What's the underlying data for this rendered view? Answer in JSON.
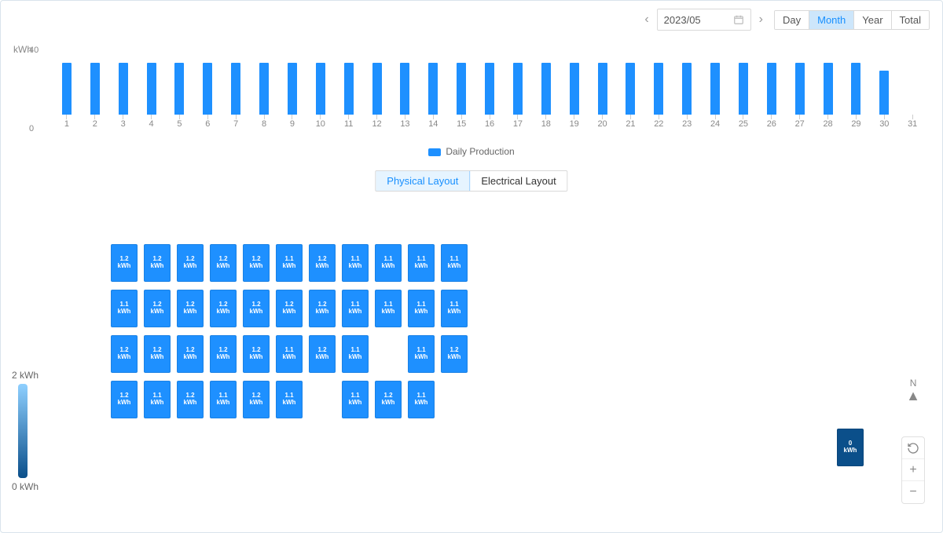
{
  "toolbar": {
    "date_value": "2023/05",
    "segments": [
      {
        "label": "Day",
        "active": false
      },
      {
        "label": "Month",
        "active": true
      },
      {
        "label": "Year",
        "active": false
      },
      {
        "label": "Total",
        "active": false
      }
    ]
  },
  "chart": {
    "type": "bar",
    "y_axis_label": "kWh",
    "y_ticks": [
      0,
      40
    ],
    "y_max": 40,
    "bar_color": "#1e90ff",
    "background_color": "#ffffff",
    "tick_color": "#cccccc",
    "label_color": "#888888",
    "legend_label": "Daily Production",
    "categories": [
      1,
      2,
      3,
      4,
      5,
      6,
      7,
      8,
      9,
      10,
      11,
      12,
      13,
      14,
      15,
      16,
      17,
      18,
      19,
      20,
      21,
      22,
      23,
      24,
      25,
      26,
      27,
      28,
      29,
      30,
      31
    ],
    "values": [
      38,
      38,
      38,
      38,
      38,
      38,
      38,
      38,
      38,
      38,
      38,
      38,
      38,
      38,
      38,
      38,
      38,
      38,
      38,
      38,
      38,
      38,
      38,
      38,
      38,
      38,
      38,
      38,
      38,
      32,
      null
    ]
  },
  "layout_tabs": [
    {
      "label": "Physical Layout",
      "active": true
    },
    {
      "label": "Electrical Layout",
      "active": false
    }
  ],
  "panels": {
    "unit": "kWh",
    "cell_color_light": "#1e90ff",
    "cell_color_dark": "#0b4f8a",
    "rows": [
      [
        {
          "v": "1.2"
        },
        {
          "v": "1.2"
        },
        {
          "v": "1.2"
        },
        {
          "v": "1.2"
        },
        {
          "v": "1.2"
        },
        {
          "v": "1.1"
        },
        {
          "v": "1.2"
        },
        {
          "v": "1.1"
        },
        {
          "v": "1.1"
        },
        {
          "v": "1.1"
        },
        {
          "v": "1.1"
        }
      ],
      [
        {
          "v": "1.1"
        },
        {
          "v": "1.2"
        },
        {
          "v": "1.2"
        },
        {
          "v": "1.2"
        },
        {
          "v": "1.2"
        },
        {
          "v": "1.2"
        },
        {
          "v": "1.2"
        },
        {
          "v": "1.1"
        },
        {
          "v": "1.1"
        },
        {
          "v": "1.1"
        },
        {
          "v": "1.1"
        }
      ],
      [
        {
          "v": "1.2"
        },
        {
          "v": "1.2"
        },
        {
          "v": "1.2"
        },
        {
          "v": "1.2"
        },
        {
          "v": "1.2"
        },
        {
          "v": "1.1"
        },
        {
          "v": "1.2"
        },
        {
          "v": "1.1"
        },
        null,
        {
          "v": "1.1"
        },
        {
          "v": "1.2"
        }
      ],
      [
        {
          "v": "1.2"
        },
        {
          "v": "1.1"
        },
        {
          "v": "1.2"
        },
        {
          "v": "1.1"
        },
        {
          "v": "1.2"
        },
        {
          "v": "1.1"
        },
        null,
        {
          "v": "1.1"
        },
        {
          "v": "1.2"
        },
        {
          "v": "1.1"
        },
        null
      ]
    ],
    "isolated": {
      "v": "0",
      "dark": true
    }
  },
  "scale": {
    "max_label": "2 kWh",
    "min_label": "0 kWh",
    "gradient_top": "#8fd0ff",
    "gradient_bottom": "#0b4f8a"
  },
  "compass": {
    "label": "N"
  },
  "zoom": {
    "reset_icon": "⟳"
  }
}
